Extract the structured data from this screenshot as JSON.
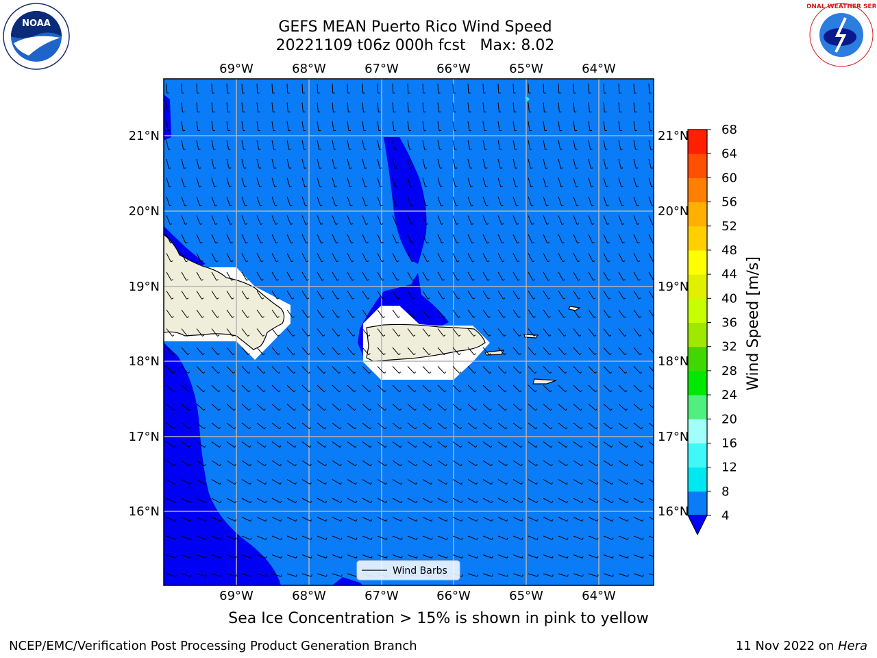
{
  "header": {
    "title_line1": "GEFS MEAN Puerto Rico Wind Speed",
    "title_line2": "20221109 t06z 000h fcst   Max: 8.02"
  },
  "logos": {
    "left_text": "NOAA",
    "right_text": "NATIONAL WEATHER SERVICE"
  },
  "map": {
    "lon_labels": [
      "69°W",
      "68°W",
      "67°W",
      "66°W",
      "65°W",
      "64°W"
    ],
    "lat_labels": [
      "21°N",
      "20°N",
      "19°N",
      "18°N",
      "17°N",
      "16°N"
    ],
    "legend_label": "Wind Barbs",
    "colors": {
      "ocean_bg": "#0a7cf7",
      "low_wind": "#0000f5",
      "land": "#efeedb",
      "mask": "#ffffff",
      "grid": "#b4b4b4"
    }
  },
  "colorbar": {
    "label": "Wind Speed [m/s]",
    "ticks": [
      "4",
      "8",
      "12",
      "16",
      "20",
      "24",
      "28",
      "32",
      "36",
      "40",
      "44",
      "48",
      "52",
      "56",
      "60",
      "64",
      "68"
    ],
    "colors": [
      "#0a7cf7",
      "#00e8f0",
      "#40f8f8",
      "#a0fff8",
      "#50f080",
      "#00e800",
      "#40d800",
      "#a0e800",
      "#c8ff00",
      "#e0f000",
      "#ffff00",
      "#ffd000",
      "#ffb000",
      "#ff8000",
      "#ff5000",
      "#ff2000"
    ],
    "extend_color": "#0000f5"
  },
  "caption": "Sea Ice Concentration > 15% is shown in pink to yellow",
  "footer": {
    "left": "NCEP/EMC/Verification Post Processing Product Generation Branch",
    "date": "11 Nov 2022 on ",
    "host": "Hera"
  }
}
